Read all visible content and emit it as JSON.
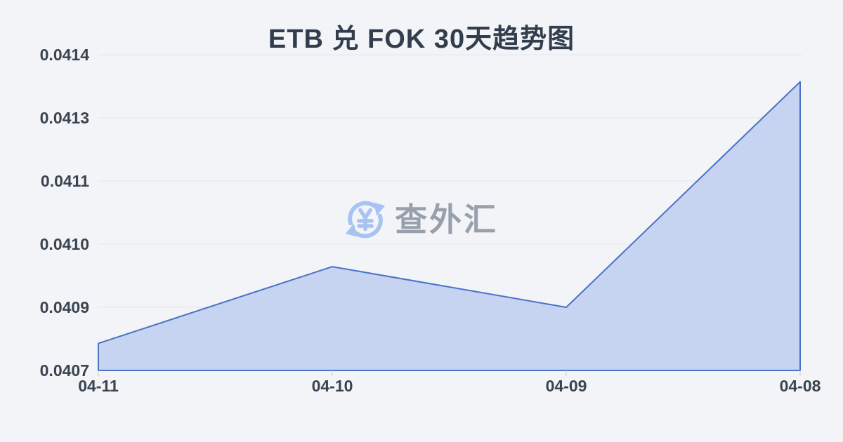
{
  "watermark": {
    "brand_text": "查外汇",
    "icon": "currency-exchange-refresh-icon",
    "currency_symbol": "¥"
  },
  "colors": {
    "background": "#f2f4f7",
    "line": "#4a72c8",
    "area_fill": "rgba(182,200,238,0.72)",
    "gridline": "#e3e6eb",
    "axis_tick": "#c9cdd4",
    "title_text": "#323d4d",
    "axis_label_text": "#3a4350",
    "watermark_text": "#98a0ab",
    "watermark_icon": "#a6c3f2"
  },
  "chart_data": {
    "type": "area",
    "title": "ETB 兑 FOK 30天趋势图",
    "x": [
      "04-11",
      "04-10",
      "04-09",
      "04-08"
    ],
    "values": [
      0.04078,
      0.04095,
      0.04086,
      0.04136
    ],
    "y_tick_labels_top_to_bottom": [
      "0.0414",
      "0.0413",
      "0.0411",
      "0.0410",
      "0.0409",
      "0.0407"
    ],
    "ylim": [
      0.04072,
      0.04142
    ],
    "xlabel": "",
    "ylabel": "",
    "grid": true,
    "legend_position": "none"
  }
}
